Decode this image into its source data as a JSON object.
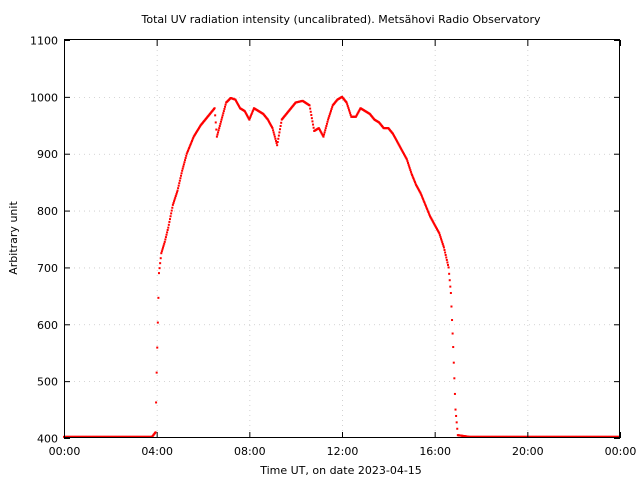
{
  "chart_data": {
    "type": "scatter",
    "title": "Total UV radiation intensity (uncalibrated). Metsähovi Radio Observatory",
    "xlabel": "Time UT, on date 2023-04-15",
    "ylabel": "Arbitrary unit",
    "x_unit": "hours UT",
    "xlim": [
      0,
      24
    ],
    "ylim": [
      400,
      1100
    ],
    "xticks": [
      0,
      4,
      8,
      12,
      16,
      20,
      24
    ],
    "xtick_labels": [
      "00:00",
      "04:00",
      "08:00",
      "12:00",
      "16:00",
      "20:00",
      "00:00"
    ],
    "yticks": [
      400,
      500,
      600,
      700,
      800,
      900,
      1000,
      1100
    ],
    "ytick_labels": [
      "400",
      "500",
      "600",
      "700",
      "800",
      "900",
      "1000",
      "1100"
    ],
    "grid": true,
    "point_color": "#ff0000",
    "series": [
      {
        "x": [
          0.0,
          1.0,
          2.0,
          3.0,
          3.8,
          3.95,
          4.0,
          4.05,
          4.1,
          4.2,
          4.35,
          4.5,
          4.7,
          4.9,
          5.1,
          5.3,
          5.6,
          5.9,
          6.2,
          6.5,
          6.6,
          6.8,
          7.0,
          7.2,
          7.4,
          7.6,
          7.8,
          8.0,
          8.2,
          8.4,
          8.6,
          8.8,
          9.0,
          9.2,
          9.4,
          9.6,
          9.8,
          10.0,
          10.3,
          10.6,
          10.8,
          11.0,
          11.2,
          11.4,
          11.6,
          11.8,
          12.0,
          12.2,
          12.4,
          12.6,
          12.8,
          13.0,
          13.2,
          13.4,
          13.6,
          13.8,
          14.0,
          14.2,
          14.4,
          14.6,
          14.8,
          15.0,
          15.2,
          15.4,
          15.6,
          15.8,
          16.0,
          16.2,
          16.4,
          16.6,
          16.7,
          16.8,
          16.9,
          17.0,
          17.5,
          18.0,
          19.0,
          20.0,
          21.0,
          22.0,
          23.0,
          24.0
        ],
        "y": [
          402,
          402,
          402,
          402,
          402,
          410,
          515,
          603,
          690,
          725,
          745,
          770,
          810,
          835,
          870,
          900,
          930,
          950,
          965,
          980,
          930,
          960,
          990,
          998,
          995,
          980,
          975,
          960,
          980,
          975,
          970,
          960,
          945,
          915,
          960,
          970,
          980,
          990,
          993,
          985,
          940,
          945,
          930,
          960,
          985,
          995,
          1000,
          990,
          965,
          965,
          980,
          975,
          970,
          960,
          955,
          945,
          945,
          935,
          920,
          905,
          890,
          865,
          845,
          830,
          810,
          790,
          775,
          760,
          735,
          700,
          655,
          560,
          450,
          405,
          402,
          402,
          402,
          402,
          402,
          402,
          402,
          402
        ]
      }
    ]
  }
}
